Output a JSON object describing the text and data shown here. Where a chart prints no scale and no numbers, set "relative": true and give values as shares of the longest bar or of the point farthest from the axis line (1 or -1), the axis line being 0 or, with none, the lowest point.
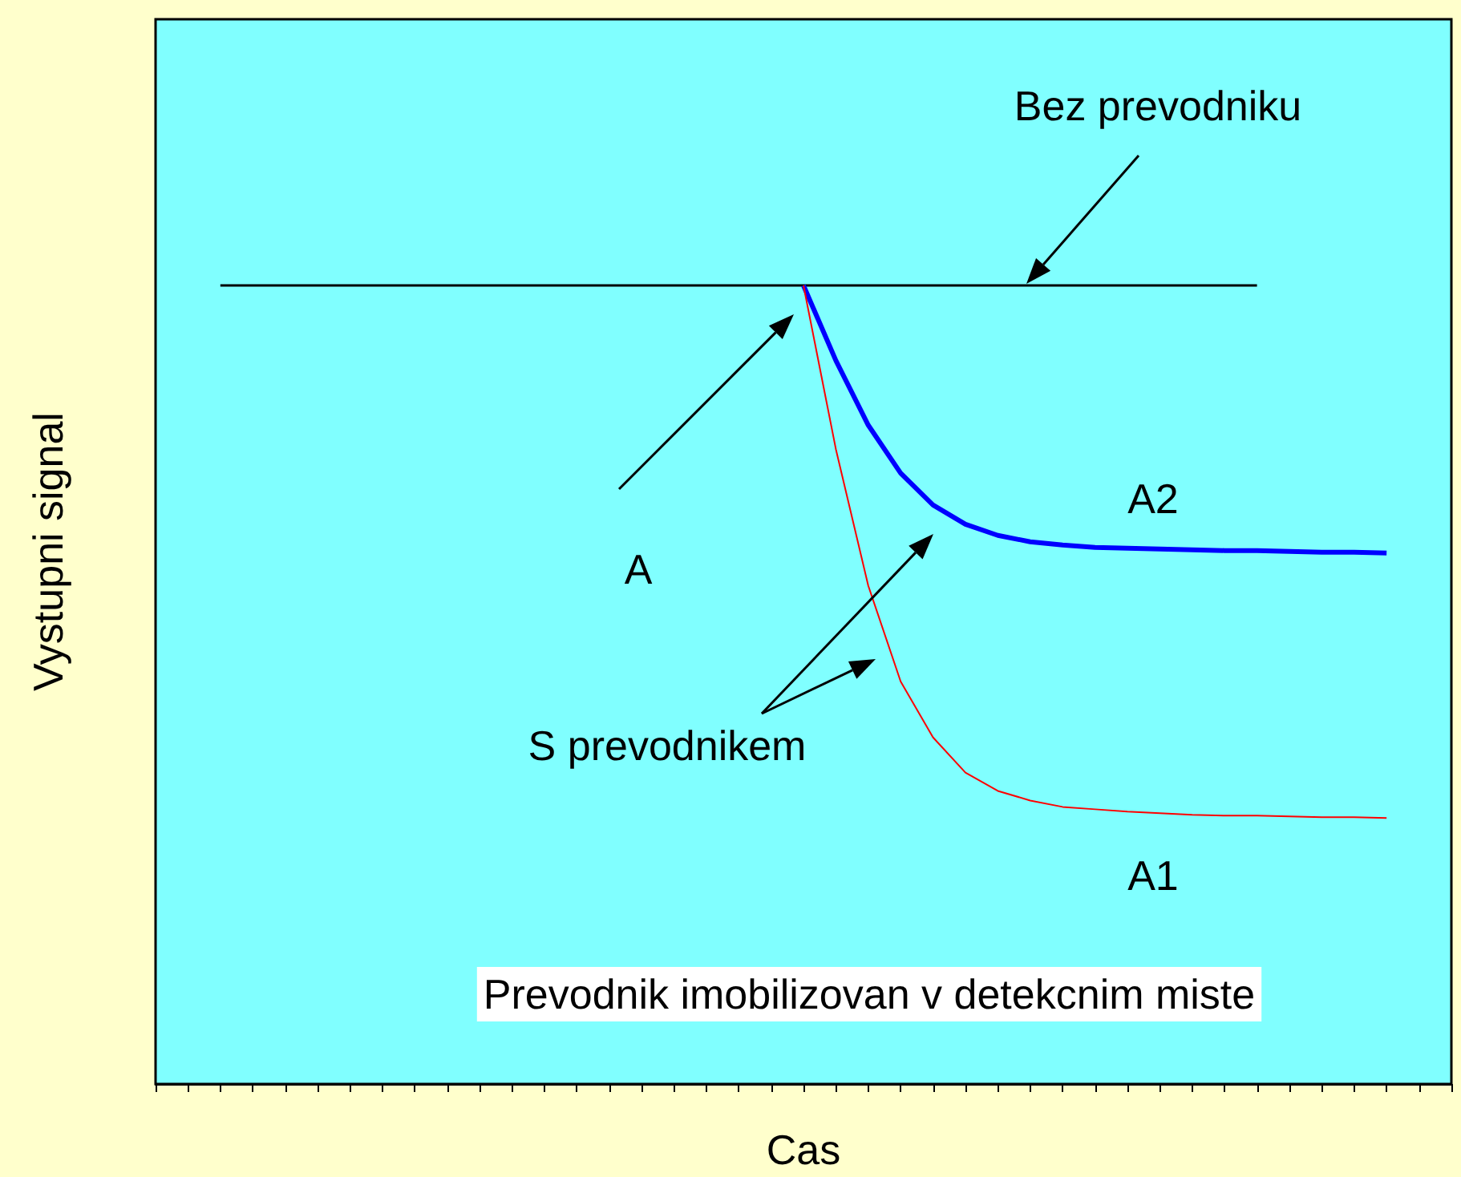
{
  "chart_data": {
    "type": "line",
    "relative": true,
    "xlabel": "Cas",
    "ylabel": "Vystupni signal",
    "categories": [
      null,
      null,
      null,
      null,
      null,
      null,
      null,
      null,
      null,
      null,
      null,
      null,
      null,
      null,
      null,
      null,
      null,
      null,
      null,
      null,
      null,
      null,
      null,
      null,
      null,
      null,
      null,
      null,
      null,
      null,
      null,
      null,
      null,
      null,
      null,
      null,
      null,
      null,
      null,
      null,
      null
    ],
    "series": [
      {
        "color": "#000000",
        "values": [
          null,
          null,
          1,
          1,
          1,
          1,
          1,
          1,
          1,
          1,
          1,
          1,
          1,
          1,
          1,
          1,
          1,
          1,
          1,
          1,
          1,
          1,
          1,
          1,
          1,
          1,
          1,
          1,
          1,
          1,
          1,
          1,
          1,
          1,
          1,
          null,
          null,
          null,
          null,
          null,
          null
        ]
      },
      {
        "color": "#0000ff",
        "values": [
          null,
          null,
          null,
          null,
          null,
          null,
          null,
          null,
          null,
          null,
          null,
          null,
          null,
          null,
          null,
          null,
          null,
          null,
          null,
          null,
          1,
          0.906,
          0.825,
          0.765,
          0.725,
          0.701,
          0.687,
          0.679,
          0.675,
          0.672,
          0.671,
          0.67,
          0.669,
          0.668,
          0.668,
          0.667,
          0.666,
          0.666,
          0.665,
          null,
          null
        ]
      },
      {
        "color": "#ff0000",
        "values": [
          null,
          null,
          null,
          null,
          null,
          null,
          null,
          null,
          null,
          null,
          null,
          null,
          null,
          null,
          null,
          null,
          null,
          null,
          null,
          null,
          1,
          0.795,
          0.624,
          0.504,
          0.434,
          0.39,
          0.367,
          0.355,
          0.347,
          0.344,
          0.341,
          0.339,
          0.337,
          0.336,
          0.336,
          0.335,
          0.334,
          0.334,
          0.333,
          null,
          null
        ]
      }
    ],
    "annotations": [
      "Bez prevodniku",
      "A",
      "A2",
      "S prevodnikem",
      "A1",
      "Prevodnik imobilizovan v detekcnim miste"
    ],
    "marker": "none",
    "line_style": "solid",
    "grid": false
  }
}
